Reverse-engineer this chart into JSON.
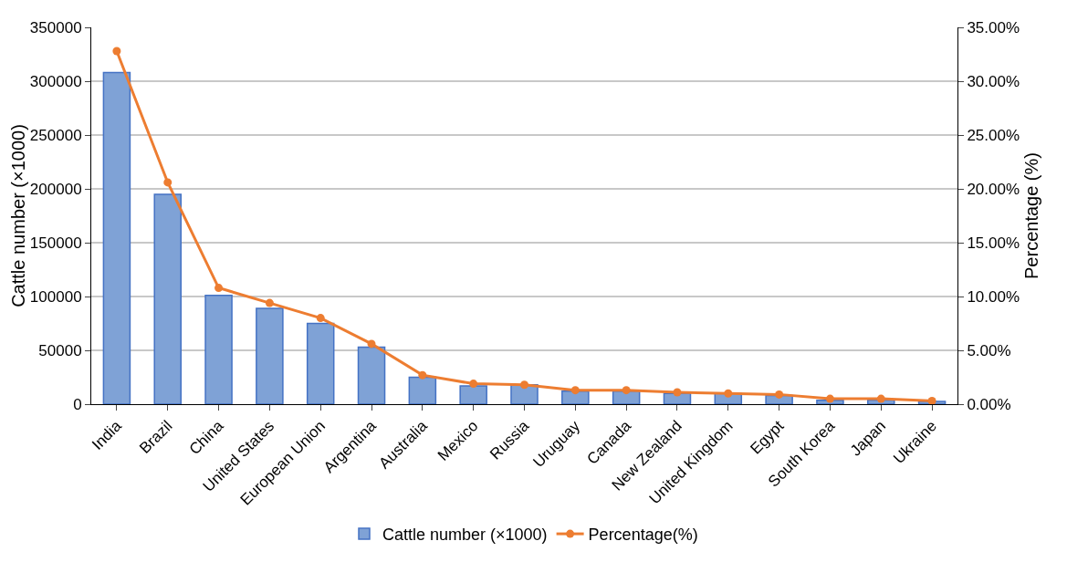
{
  "chart_data": {
    "type": "bar",
    "ylabel": "Cattle number (×1000)",
    "y2label": "Percentage (%)",
    "categories": [
      "India",
      "Brazil",
      "China",
      "United States",
      "European Union",
      "Argentina",
      "Australia",
      "Mexico",
      "Russia",
      "Uruguay",
      "Canada",
      "New Zealand",
      "United Kingdom",
      "Egypt",
      "South Korea",
      "Japan",
      "Ukraine"
    ],
    "series": [
      {
        "name": "Cattle number (×1000)",
        "color": "#7fa2d6",
        "values": [
          308000,
          195000,
          101000,
          89000,
          75000,
          53000,
          25000,
          17000,
          18000,
          12000,
          12000,
          10000,
          10000,
          8000,
          3500,
          3800,
          2500
        ]
      },
      {
        "name": "Percentage(%)",
        "type": "line",
        "axis": "y2",
        "color": "#ed7d31",
        "marker": "circle",
        "values": [
          32.8,
          20.6,
          10.8,
          9.4,
          8.0,
          5.6,
          2.7,
          1.9,
          1.8,
          1.3,
          1.3,
          1.1,
          1.0,
          0.9,
          0.5,
          0.5,
          0.3
        ]
      }
    ],
    "ylim": [
      0,
      350000
    ],
    "yticks": [
      0,
      50000,
      100000,
      150000,
      200000,
      250000,
      300000,
      350000
    ],
    "y2lim": [
      0,
      35
    ],
    "y2ticks": [
      {
        "value": 0,
        "label": "0.00%"
      },
      {
        "value": 5,
        "label": "5.00%"
      },
      {
        "value": 10,
        "label": "10.00%"
      },
      {
        "value": 15,
        "label": "15.00%"
      },
      {
        "value": 20,
        "label": "20.00%"
      },
      {
        "value": 25,
        "label": "25.00%"
      },
      {
        "value": 30,
        "label": "30.00%"
      },
      {
        "value": 35,
        "label": "35.00%"
      }
    ],
    "grid": "y",
    "legend": "bottom"
  }
}
